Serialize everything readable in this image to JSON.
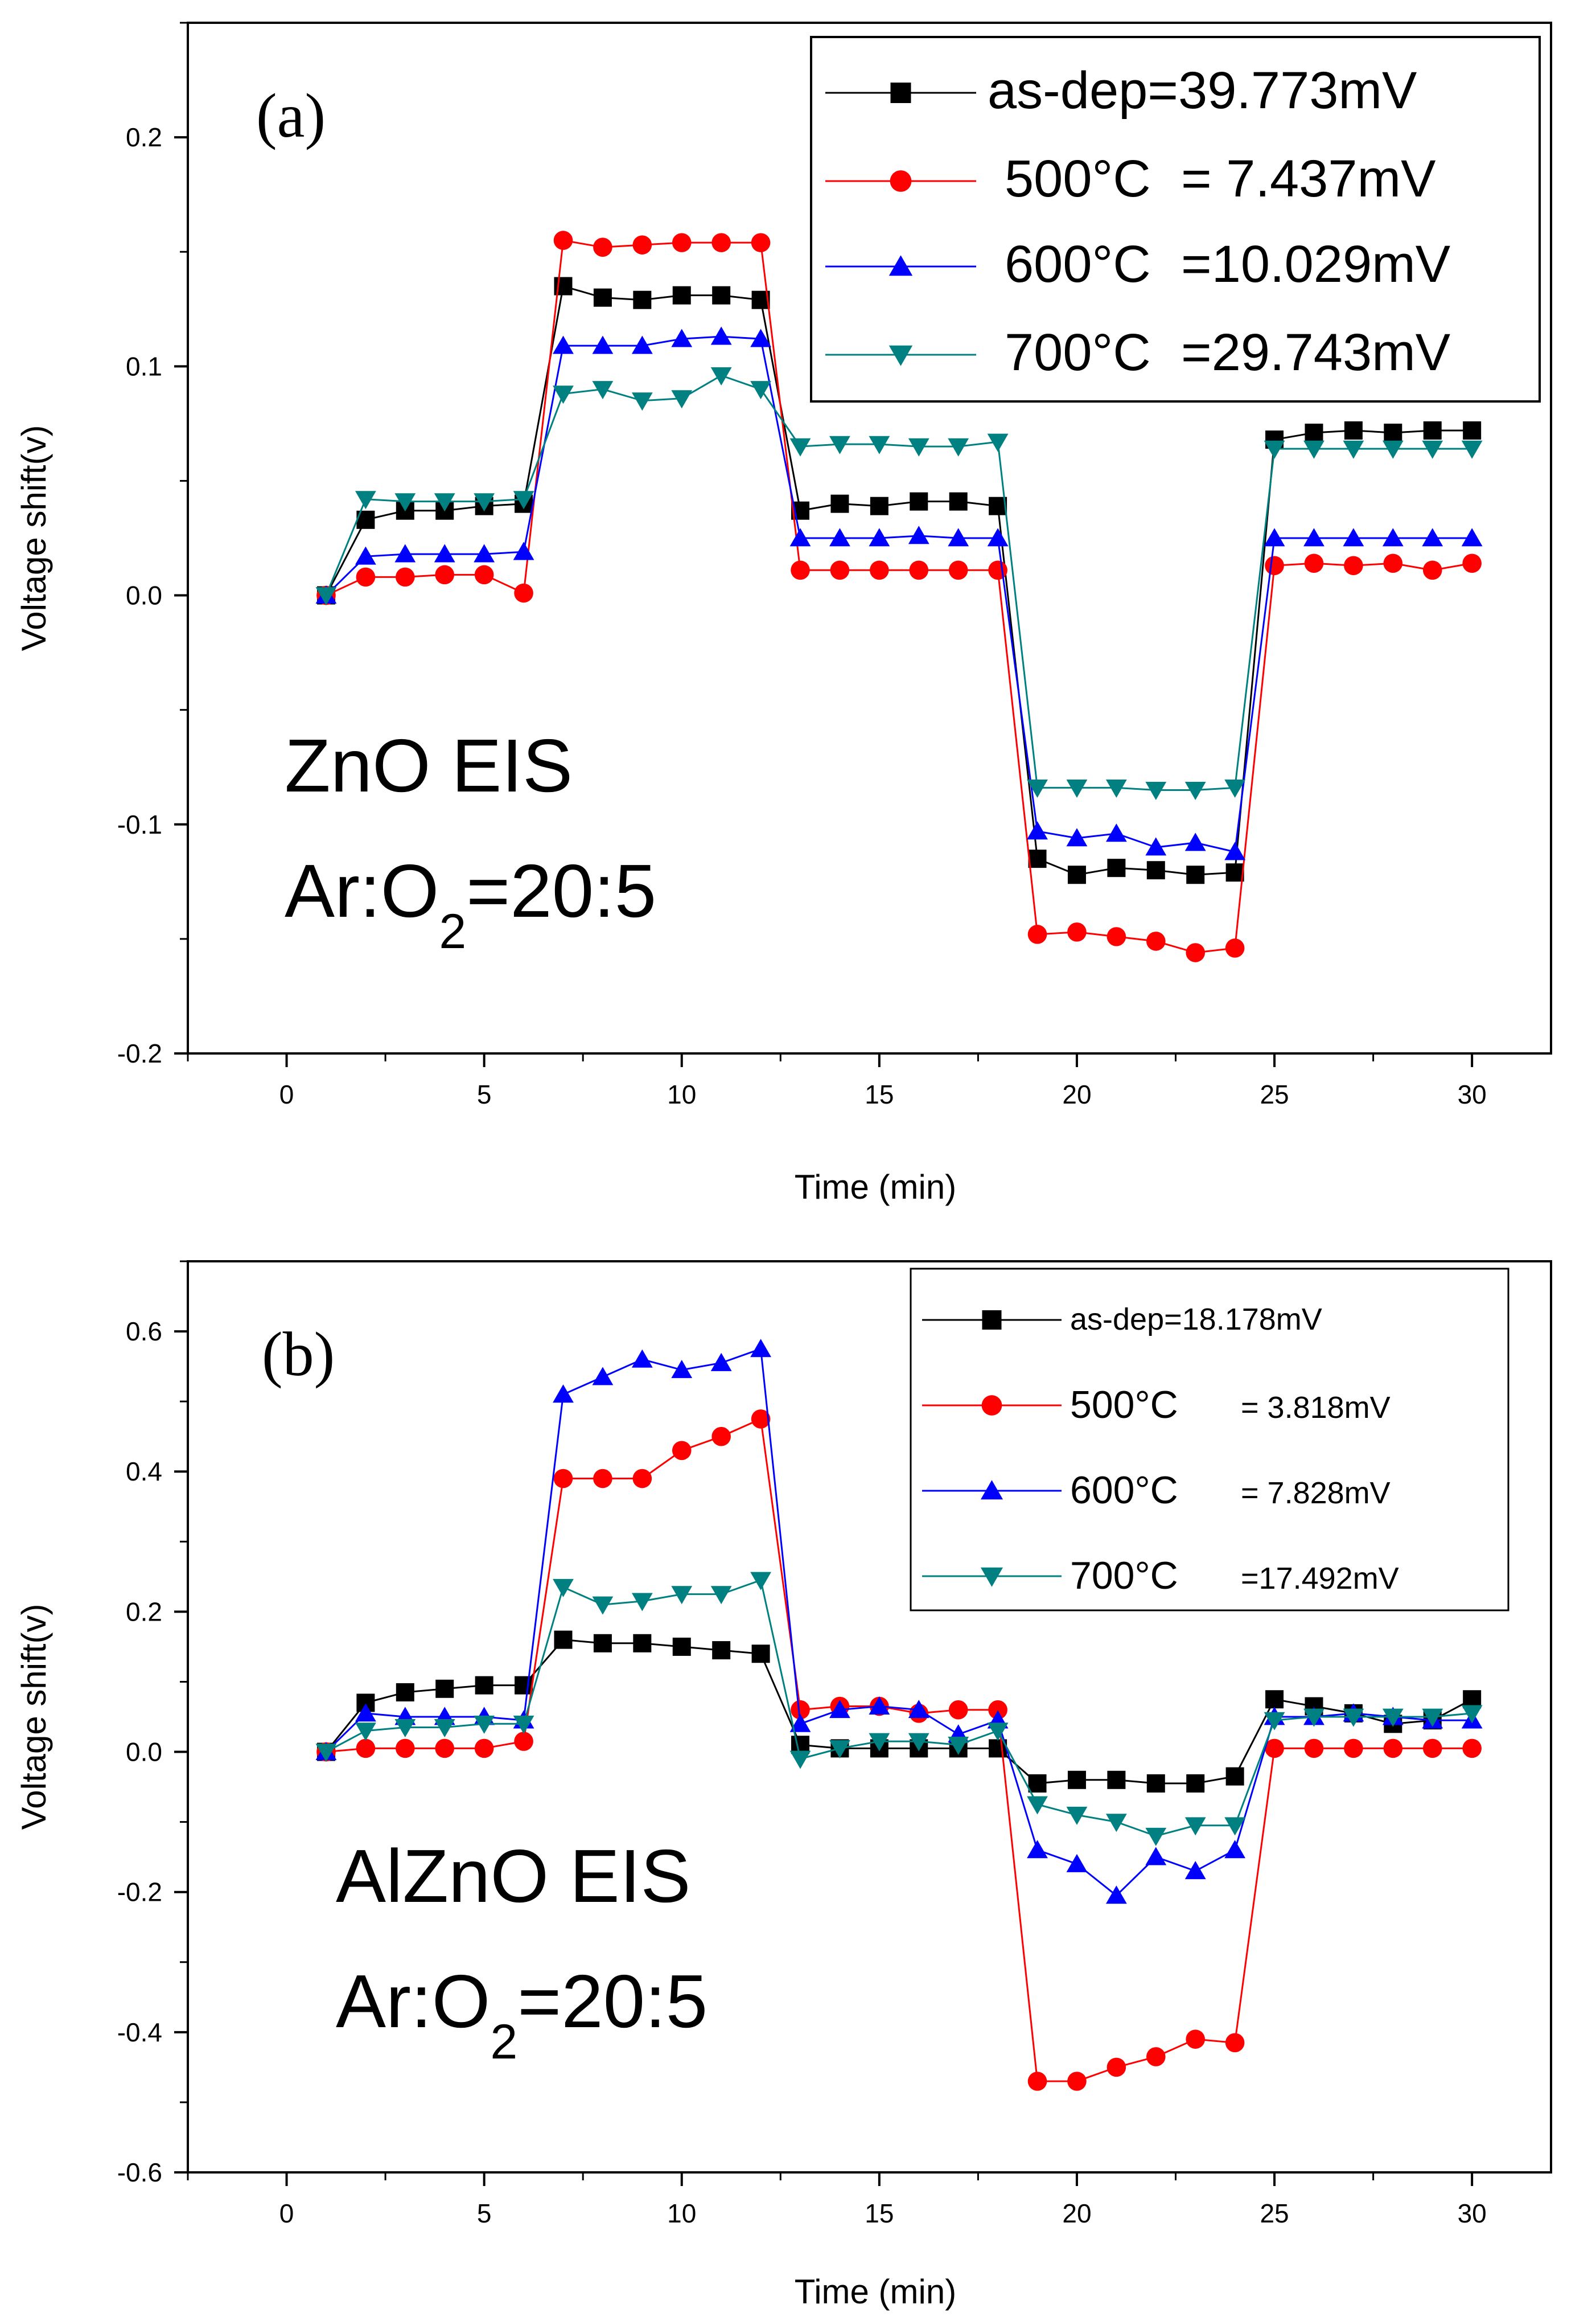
{
  "colors": {
    "as_dep": "#000000",
    "c500": "#ff0000",
    "c600": "#0000ff",
    "c700": "#008080"
  },
  "chart_data": [
    {
      "type": "line",
      "panel": "(a)",
      "annotation": {
        "line1": "ZnO EIS",
        "line2_pre": "Ar:O",
        "line2_sub": "2",
        "line2_post": "=20:5"
      },
      "xlabel": "Time (min)",
      "ylabel": "Voltage shift(v)",
      "xlim": [
        -2.5,
        32
      ],
      "ylim": [
        -0.2,
        0.25
      ],
      "xticks": [
        0,
        5,
        10,
        15,
        20,
        25,
        30
      ],
      "xtick_labels": [
        "0",
        "5",
        "10",
        "15",
        "20",
        "25",
        "30"
      ],
      "yticks": [
        -0.2,
        -0.1,
        0.0,
        0.1,
        0.2
      ],
      "ytick_labels": [
        "-0.2",
        "-0.1",
        "0.0",
        "0.1",
        "0.2"
      ],
      "legend_placement": "top-right",
      "x": [
        1,
        2,
        3,
        4,
        5,
        6,
        7,
        8,
        9,
        10,
        11,
        12,
        13,
        14,
        15,
        16,
        17,
        18,
        19,
        20,
        21,
        22,
        23,
        24,
        25,
        26,
        27,
        28,
        29,
        30
      ],
      "series": [
        {
          "key": "as_dep",
          "marker": "square",
          "legend_label": "as-dep=39.773mV",
          "values": [
            0,
            0.033,
            0.037,
            0.037,
            0.039,
            0.04,
            0.135,
            0.13,
            0.129,
            0.131,
            0.131,
            0.129,
            0.037,
            0.04,
            0.039,
            0.041,
            0.041,
            0.039,
            -0.115,
            -0.122,
            -0.119,
            -0.12,
            -0.122,
            -0.121,
            0.068,
            0.071,
            0.072,
            0.071,
            0.072,
            0.072
          ]
        },
        {
          "key": "c500",
          "marker": "circle",
          "legend_label_left": "500°C",
          "legend_label_right": "=  7.437mV",
          "values": [
            0,
            0.008,
            0.008,
            0.009,
            0.009,
            0.001,
            0.155,
            0.152,
            0.153,
            0.154,
            0.154,
            0.154,
            0.011,
            0.011,
            0.011,
            0.011,
            0.011,
            0.011,
            -0.148,
            -0.147,
            -0.149,
            -0.151,
            -0.156,
            -0.154,
            0.013,
            0.014,
            0.013,
            0.014,
            0.011,
            0.014
          ]
        },
        {
          "key": "c600",
          "marker": "triangle-up",
          "legend_label_left": "600°C",
          "legend_label_right": "=10.029mV",
          "values": [
            0,
            0.017,
            0.018,
            0.018,
            0.018,
            0.019,
            0.109,
            0.109,
            0.109,
            0.112,
            0.113,
            0.112,
            0.025,
            0.025,
            0.025,
            0.026,
            0.025,
            0.025,
            -0.103,
            -0.106,
            -0.104,
            -0.11,
            -0.108,
            -0.112,
            0.025,
            0.025,
            0.025,
            0.025,
            0.025,
            0.025
          ]
        },
        {
          "key": "c700",
          "marker": "triangle-down",
          "legend_label_left": "700°C",
          "legend_label_right": "=29.743mV",
          "values": [
            0,
            0.042,
            0.041,
            0.041,
            0.041,
            0.042,
            0.088,
            0.09,
            0.085,
            0.086,
            0.096,
            0.09,
            0.065,
            0.066,
            0.066,
            0.065,
            0.065,
            0.067,
            -0.084,
            -0.084,
            -0.084,
            -0.085,
            -0.085,
            -0.084,
            0.064,
            0.064,
            0.064,
            0.064,
            0.064,
            0.064
          ]
        }
      ]
    },
    {
      "type": "line",
      "panel": "(b)",
      "annotation": {
        "line1": "AlZnO EIS",
        "line2_pre": "Ar:O",
        "line2_sub": "2",
        "line2_post": "=20:5"
      },
      "xlabel": "Time (min)",
      "ylabel": "Voltage shift(v)",
      "xlim": [
        -2.5,
        32
      ],
      "ylim": [
        -0.6,
        0.7
      ],
      "xticks": [
        0,
        5,
        10,
        15,
        20,
        25,
        30
      ],
      "xtick_labels": [
        "0",
        "5",
        "10",
        "15",
        "20",
        "25",
        "30"
      ],
      "yticks": [
        -0.6,
        -0.4,
        -0.2,
        0.0,
        0.2,
        0.4,
        0.6
      ],
      "ytick_labels": [
        "-0.6",
        "-0.4",
        "-0.2",
        "0.0",
        "0.2",
        "0.4",
        "0.6"
      ],
      "legend_placement": "top-right",
      "x": [
        1,
        2,
        3,
        4,
        5,
        6,
        7,
        8,
        9,
        10,
        11,
        12,
        13,
        14,
        15,
        16,
        17,
        18,
        19,
        20,
        21,
        22,
        23,
        24,
        25,
        26,
        27,
        28,
        29,
        30
      ],
      "series": [
        {
          "key": "as_dep",
          "marker": "square",
          "legend_label": "as-dep=18.178mV",
          "values": [
            0,
            0.07,
            0.085,
            0.09,
            0.095,
            0.095,
            0.16,
            0.155,
            0.155,
            0.15,
            0.145,
            0.14,
            0.01,
            0.005,
            0.005,
            0.005,
            0.005,
            0.005,
            -0.045,
            -0.04,
            -0.04,
            -0.045,
            -0.045,
            -0.035,
            0.075,
            0.065,
            0.055,
            0.04,
            0.045,
            0.075
          ]
        },
        {
          "key": "c500",
          "marker": "circle",
          "legend_label_left": "500°C",
          "legend_label_right": "=  3.818mV",
          "values": [
            0,
            0.005,
            0.005,
            0.005,
            0.005,
            0.015,
            0.39,
            0.39,
            0.39,
            0.43,
            0.45,
            0.475,
            0.06,
            0.065,
            0.065,
            0.055,
            0.06,
            0.06,
            -0.47,
            -0.47,
            -0.45,
            -0.435,
            -0.41,
            -0.415,
            0.005,
            0.005,
            0.005,
            0.005,
            0.005,
            0.005
          ]
        },
        {
          "key": "c600",
          "marker": "triangle-up",
          "legend_label_left": "600°C",
          "legend_label_right": "=  7.828mV",
          "values": [
            0,
            0.055,
            0.05,
            0.05,
            0.05,
            0.045,
            0.51,
            0.535,
            0.56,
            0.545,
            0.555,
            0.575,
            0.04,
            0.06,
            0.065,
            0.06,
            0.025,
            0.045,
            -0.14,
            -0.16,
            -0.205,
            -0.15,
            -0.17,
            -0.14,
            0.05,
            0.05,
            0.055,
            0.05,
            0.045,
            0.045
          ]
        },
        {
          "key": "c700",
          "marker": "triangle-down",
          "legend_label_left": "700°C",
          "legend_label_right": "=17.492mV",
          "values": [
            0,
            0.03,
            0.035,
            0.035,
            0.04,
            0.04,
            0.235,
            0.21,
            0.215,
            0.225,
            0.225,
            0.245,
            -0.01,
            0.005,
            0.015,
            0.015,
            0.01,
            0.03,
            -0.075,
            -0.09,
            -0.1,
            -0.12,
            -0.105,
            -0.105,
            0.045,
            0.05,
            0.05,
            0.05,
            0.05,
            0.055
          ]
        }
      ]
    }
  ]
}
